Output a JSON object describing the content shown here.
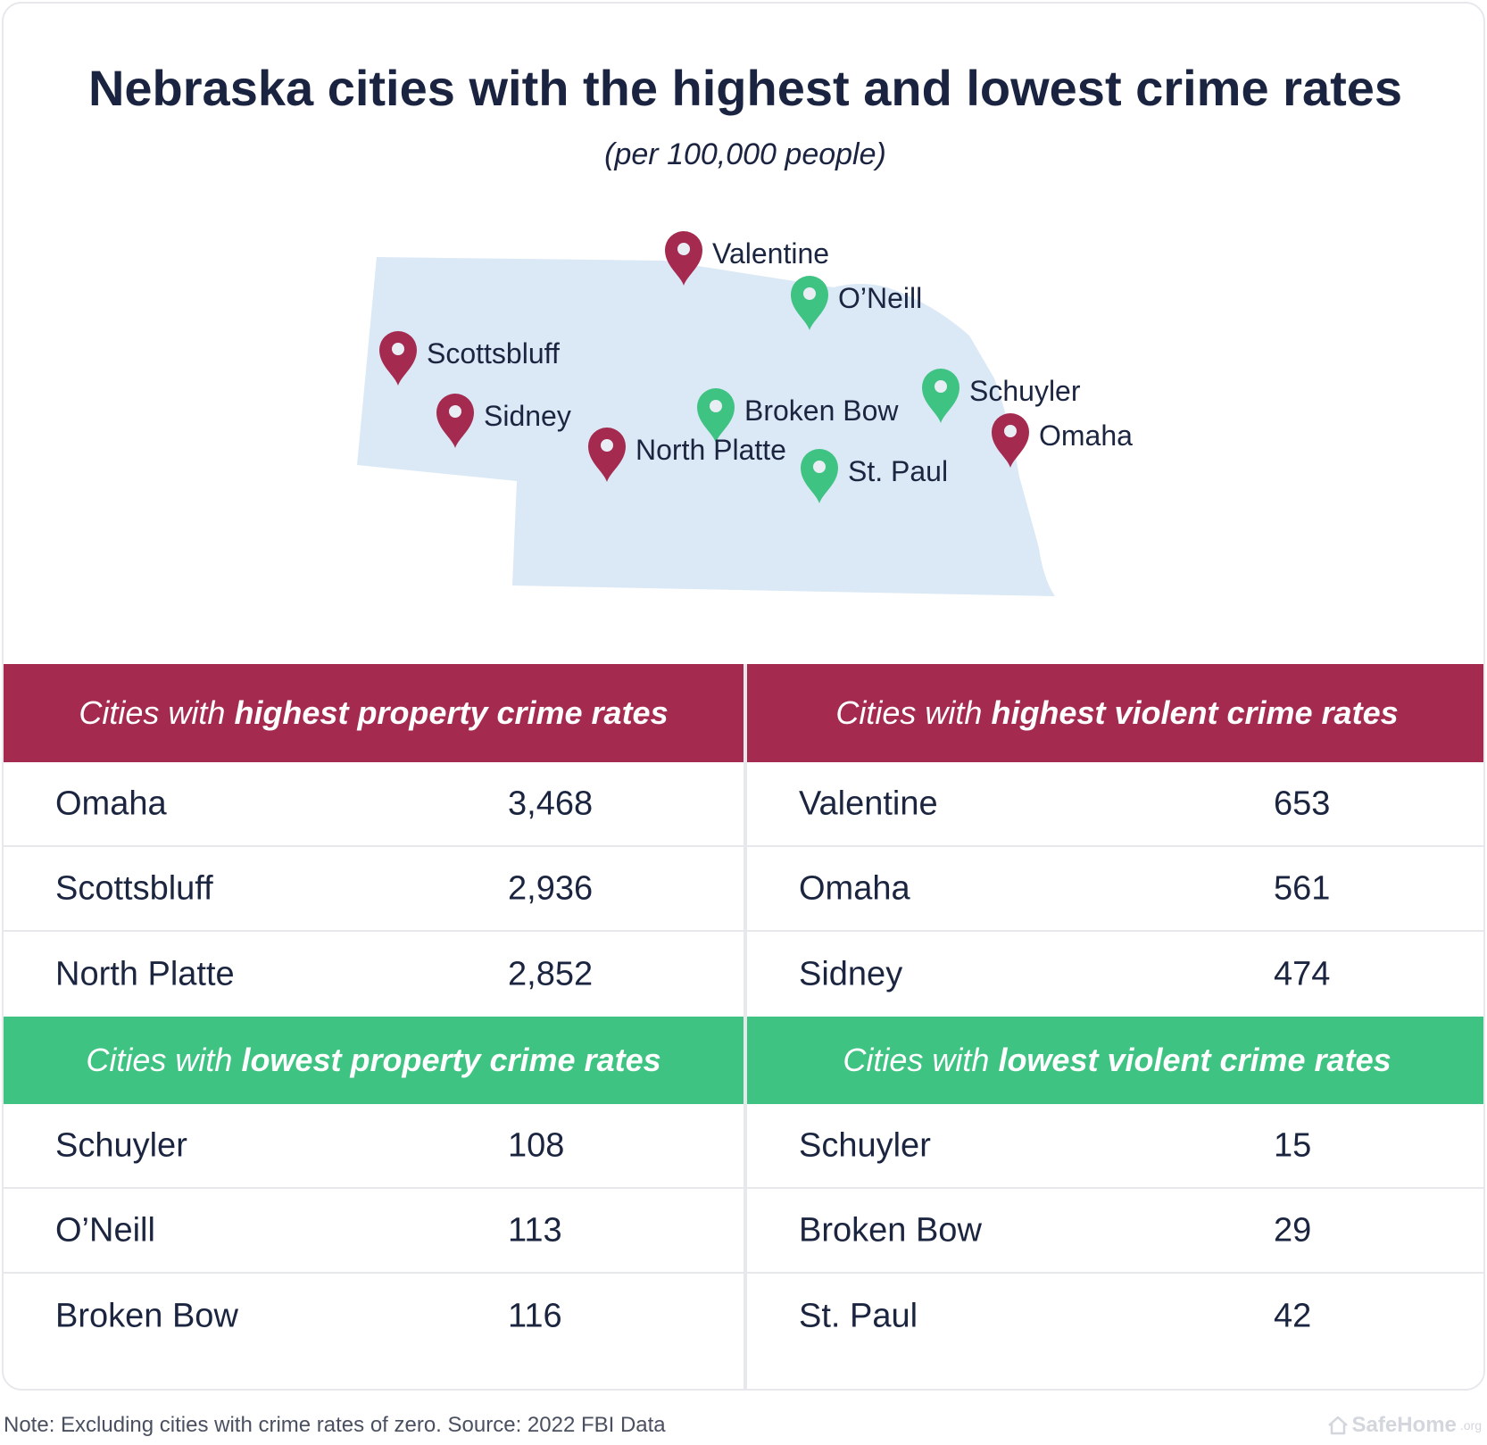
{
  "header": {
    "title": "Nebraska cities with the highest and lowest crime rates",
    "subtitle": "(per 100,000 people)"
  },
  "map": {
    "region_color": "#dbe8f6",
    "high_color": "#a52a50",
    "low_color": "#3fc383",
    "pins": [
      {
        "label": "Valentine",
        "category": "high"
      },
      {
        "label": "O’Neill",
        "category": "low"
      },
      {
        "label": "Scottsbluff",
        "category": "high"
      },
      {
        "label": "Sidney",
        "category": "high"
      },
      {
        "label": "Broken Bow",
        "category": "low"
      },
      {
        "label": "Schuyler",
        "category": "low"
      },
      {
        "label": "Omaha",
        "category": "high"
      },
      {
        "label": "North Platte",
        "category": "high"
      },
      {
        "label": "St. Paul",
        "category": "low"
      }
    ]
  },
  "tables": {
    "high_property": {
      "prefix": "Cities with ",
      "emphasis": "highest property crime rates",
      "rows": [
        {
          "city": "Omaha",
          "value": "3,468"
        },
        {
          "city": "Scottsbluff",
          "value": "2,936"
        },
        {
          "city": "North Platte",
          "value": "2,852"
        }
      ]
    },
    "high_violent": {
      "prefix": "Cities with ",
      "emphasis": "highest violent crime rates",
      "rows": [
        {
          "city": "Valentine",
          "value": "653"
        },
        {
          "city": "Omaha",
          "value": "561"
        },
        {
          "city": "Sidney",
          "value": "474"
        }
      ]
    },
    "low_property": {
      "prefix": "Cities with ",
      "emphasis": "lowest property crime rates",
      "rows": [
        {
          "city": "Schuyler",
          "value": "108"
        },
        {
          "city": "O’Neill",
          "value": "113"
        },
        {
          "city": "Broken Bow",
          "value": "116"
        }
      ]
    },
    "low_violent": {
      "prefix": "Cities with ",
      "emphasis": "lowest violent crime rates",
      "rows": [
        {
          "city": "Schuyler",
          "value": "15"
        },
        {
          "city": "Broken Bow",
          "value": "29"
        },
        {
          "city": "St. Paul",
          "value": "42"
        }
      ]
    }
  },
  "footer": {
    "note": "Note: Excluding cities with crime rates of zero. Source: 2022 FBI Data",
    "brand": "SafeHome",
    "brand_suffix": ".org",
    "brand_icon": "house-icon"
  }
}
